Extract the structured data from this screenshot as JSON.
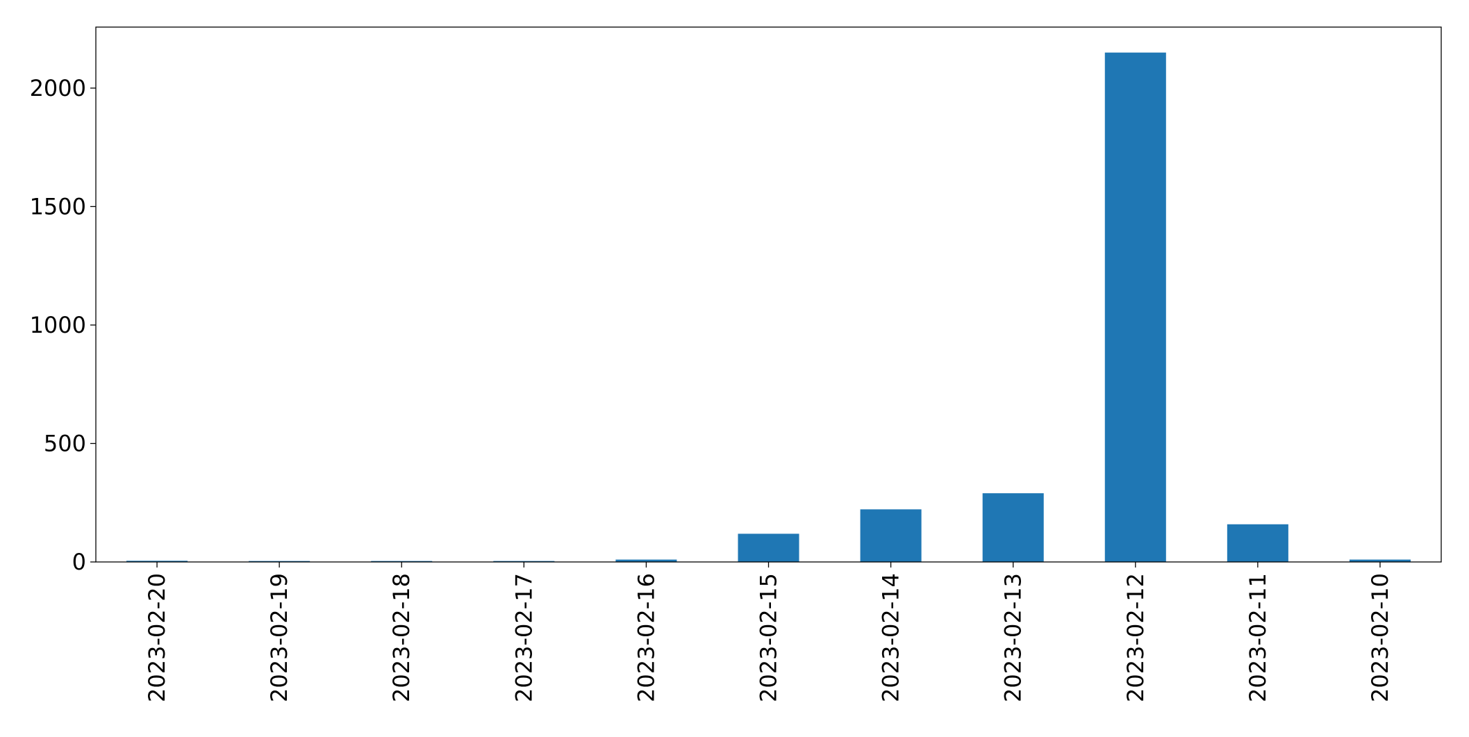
{
  "chart_data": {
    "type": "bar",
    "categories": [
      "2023-02-20",
      "2023-02-19",
      "2023-02-18",
      "2023-02-17",
      "2023-02-16",
      "2023-02-15",
      "2023-02-14",
      "2023-02-13",
      "2023-02-12",
      "2023-02-11",
      "2023-02-10"
    ],
    "values": [
      5,
      4,
      4,
      4,
      10,
      119,
      222,
      290,
      2150,
      159,
      10
    ],
    "color": "#1f77b4",
    "ylim": [
      0,
      2257.5
    ],
    "yticks": [
      0,
      500,
      1000,
      1500,
      2000
    ],
    "grid": false
  }
}
